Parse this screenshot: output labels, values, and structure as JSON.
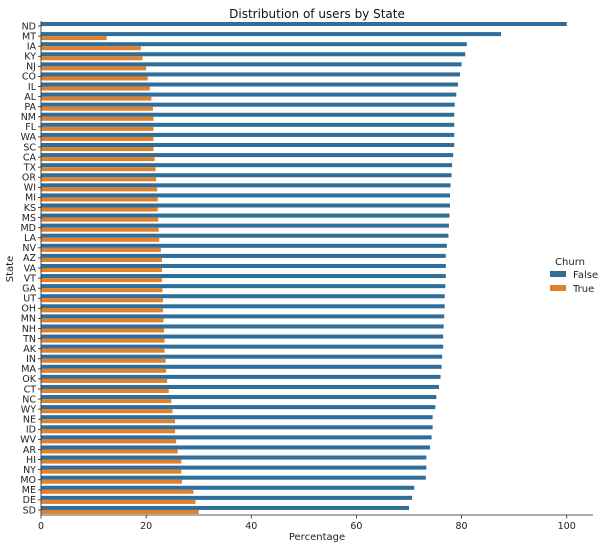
{
  "chart_data": {
    "type": "bar",
    "orientation": "horizontal",
    "title": "Distribution of users by State",
    "xlabel": "Percentage",
    "ylabel": "State",
    "xlim": [
      0,
      105
    ],
    "xticks": [
      0,
      20,
      40,
      60,
      80,
      100
    ],
    "grid": false,
    "legend": {
      "title": "Churn",
      "position": "center-right"
    },
    "categories": [
      "ND",
      "MT",
      "IA",
      "KY",
      "NJ",
      "CO",
      "IL",
      "AL",
      "PA",
      "NM",
      "FL",
      "WA",
      "SC",
      "CA",
      "TX",
      "OR",
      "WI",
      "MI",
      "KS",
      "MS",
      "MD",
      "LA",
      "NV",
      "AZ",
      "VA",
      "VT",
      "GA",
      "UT",
      "OH",
      "MN",
      "NH",
      "TN",
      "AK",
      "IN",
      "MA",
      "OK",
      "CT",
      "NC",
      "WY",
      "NE",
      "ID",
      "WV",
      "AR",
      "HI",
      "NY",
      "MO",
      "ME",
      "DE",
      "SD"
    ],
    "series": [
      {
        "name": "False",
        "color": "#2f6e9a",
        "values": [
          100.0,
          87.5,
          81.0,
          80.7,
          80.0,
          79.7,
          79.3,
          79.0,
          78.7,
          78.6,
          78.6,
          78.6,
          78.6,
          78.4,
          78.2,
          78.1,
          77.9,
          77.8,
          77.8,
          77.7,
          77.6,
          77.5,
          77.2,
          77.0,
          77.0,
          77.0,
          76.9,
          76.8,
          76.8,
          76.7,
          76.6,
          76.5,
          76.5,
          76.3,
          76.2,
          76.0,
          75.7,
          75.2,
          75.0,
          74.5,
          74.5,
          74.3,
          74.0,
          73.3,
          73.3,
          73.2,
          71.0,
          70.6,
          70.0
        ]
      },
      {
        "name": "True",
        "color": "#e1812c",
        "values": [
          0.0,
          12.5,
          19.0,
          19.3,
          20.0,
          20.3,
          20.7,
          21.0,
          21.3,
          21.4,
          21.4,
          21.4,
          21.4,
          21.6,
          21.8,
          21.9,
          22.1,
          22.2,
          22.2,
          22.3,
          22.4,
          22.5,
          22.8,
          23.0,
          23.0,
          23.0,
          23.1,
          23.2,
          23.2,
          23.3,
          23.4,
          23.5,
          23.5,
          23.7,
          23.8,
          24.0,
          24.3,
          24.8,
          25.0,
          25.5,
          25.5,
          25.7,
          26.0,
          26.7,
          26.7,
          26.8,
          29.0,
          29.4,
          30.0
        ]
      }
    ]
  }
}
